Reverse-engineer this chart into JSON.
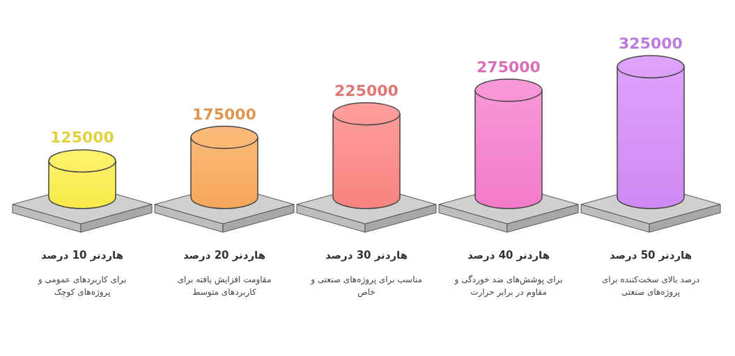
{
  "chart_data": {
    "type": "bar",
    "categories": [
      "هاردنر 10 درصد",
      "هاردنر 20 درصد",
      "هاردنر 30 درصد",
      "هاردنر 40 درصد",
      "هاردنر 50 درصد"
    ],
    "values": [
      125000,
      175000,
      225000,
      275000,
      325000
    ],
    "colors": [
      "#fff04a",
      "#fdab5c",
      "#ff8784",
      "#f87fd0",
      "#d68cfb"
    ],
    "data_labels": true,
    "annotations": [
      "برای کاربردهای عمومی و پروژه‌های کوچک",
      "مقاومت افزایش یافته برای کاربردهای متوسط",
      "مناسب برای پروژه‌های صنعتی و خاص",
      "برای پوشش‌های ضد خوردگی و مقاوم در برابر حرارت",
      "درصد بالای سخت‌کننده برای پروژه‌های صنعتی"
    ]
  }
}
